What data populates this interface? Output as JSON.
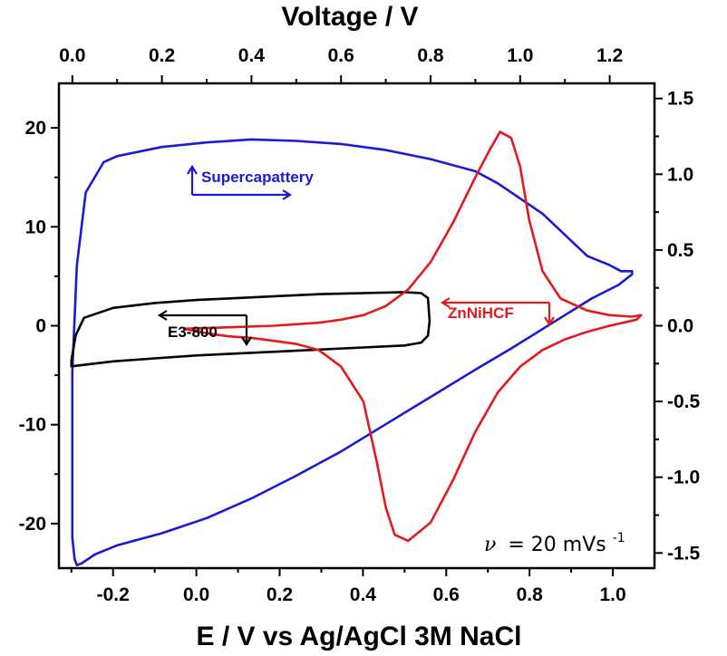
{
  "chart_data": {
    "type": "line",
    "title": "",
    "xlabel": "E / V vs Ag/AgCl 3M NaCl",
    "x2label": "Voltage / V",
    "ylabel": "",
    "y2label": "",
    "xlim": [
      -0.33,
      1.1
    ],
    "ylim": [
      -24.5,
      24.5
    ],
    "x2lim": [
      -0.03,
      1.3
    ],
    "y2lim": [
      -1.6,
      1.6
    ],
    "x_ticks": [
      "-0.2",
      "0.0",
      "0.2",
      "0.4",
      "0.6",
      "0.8",
      "1.0"
    ],
    "y_ticks": [
      "-20",
      "-10",
      "0",
      "10",
      "20"
    ],
    "x2_ticks": [
      "0.0",
      "0.2",
      "0.4",
      "0.6",
      "0.8",
      "1.0",
      "1.2"
    ],
    "y2_ticks": [
      "-1.5",
      "-1.0",
      "-0.5",
      "0.0",
      "0.5",
      "1.0",
      "1.5"
    ],
    "colors": {
      "supercapattery": "#1a1ad6",
      "e3_800": "#000000",
      "znnihcf": "#e3191c"
    },
    "series": [
      {
        "name": "Supercapattery",
        "color": "#1a1ad6",
        "axes": "top-right",
        "x": [
          1.25,
          1.22,
          1.16,
          1.1,
          1.04,
          0.98,
          0.9,
          0.8,
          0.7,
          0.6,
          0.5,
          0.4,
          0.3,
          0.2,
          0.1,
          0.05,
          0.02,
          0.01,
          0.005,
          0.0,
          0.0,
          0.01,
          0.03,
          0.07,
          0.1,
          0.2,
          0.3,
          0.4,
          0.5,
          0.6,
          0.7,
          0.8,
          0.9,
          0.95,
          1.0,
          1.05,
          1.1,
          1.15,
          1.2,
          1.225,
          1.24,
          1.25,
          1.25
        ],
        "y": [
          0.34,
          0.27,
          0.18,
          0.07,
          -0.04,
          -0.15,
          -0.29,
          -0.47,
          -0.65,
          -0.83,
          -0.99,
          -1.14,
          -1.27,
          -1.37,
          -1.45,
          -1.51,
          -1.57,
          -1.58,
          -1.54,
          -1.4,
          -0.3,
          0.4,
          0.88,
          1.08,
          1.12,
          1.18,
          1.21,
          1.23,
          1.22,
          1.2,
          1.16,
          1.1,
          1.02,
          0.94,
          0.84,
          0.74,
          0.6,
          0.46,
          0.4,
          0.36,
          0.36,
          0.36,
          0.34
        ]
      },
      {
        "name": "E3-800",
        "color": "#000000",
        "axes": "bottom-left",
        "x": [
          -0.3,
          -0.2,
          -0.1,
          0.0,
          0.1,
          0.2,
          0.3,
          0.4,
          0.5,
          0.54,
          0.556,
          0.56,
          0.556,
          0.54,
          0.5,
          0.4,
          0.3,
          0.2,
          0.1,
          0.0,
          -0.1,
          -0.2,
          -0.27,
          -0.29,
          -0.3,
          -0.3
        ],
        "y": [
          -4.1,
          -3.6,
          -3.3,
          -3.0,
          -2.8,
          -2.6,
          -2.4,
          -2.2,
          -2.0,
          -1.7,
          -1.0,
          0.5,
          2.8,
          3.3,
          3.4,
          3.3,
          3.2,
          3.0,
          2.8,
          2.6,
          2.3,
          1.8,
          0.8,
          -1.0,
          -3.5,
          -4.1
        ]
      },
      {
        "name": "ZnNiHCF",
        "color": "#e3191c",
        "axes": "top-right",
        "x": [
          0.25,
          0.35,
          0.45,
          0.55,
          0.6,
          0.65,
          0.7,
          0.75,
          0.8,
          0.85,
          0.9,
          0.93,
          0.955,
          0.98,
          1.0,
          1.02,
          1.05,
          1.09,
          1.15,
          1.2,
          1.25,
          1.27,
          1.26,
          1.2,
          1.15,
          1.1,
          1.05,
          1.0,
          0.95,
          0.9,
          0.85,
          0.8,
          0.75,
          0.72,
          0.7,
          0.68,
          0.65,
          0.6,
          0.55,
          0.5,
          0.45,
          0.4,
          0.35,
          0.3,
          0.25
        ],
        "y": [
          -0.02,
          -0.01,
          0.0,
          0.02,
          0.04,
          0.07,
          0.13,
          0.24,
          0.42,
          0.68,
          0.98,
          1.15,
          1.28,
          1.24,
          1.05,
          0.7,
          0.36,
          0.18,
          0.1,
          0.07,
          0.06,
          0.07,
          0.04,
          0.0,
          -0.04,
          -0.09,
          -0.16,
          -0.27,
          -0.44,
          -0.7,
          -1.02,
          -1.3,
          -1.42,
          -1.38,
          -1.2,
          -0.9,
          -0.5,
          -0.27,
          -0.16,
          -0.12,
          -0.1,
          -0.08,
          -0.07,
          -0.05,
          -0.02
        ]
      }
    ],
    "annotations": [
      {
        "text": "Supercapattery",
        "color": "#1a1ad6"
      },
      {
        "text": "E3-800",
        "color": "#000000"
      },
      {
        "text": "ZnNiHCF",
        "color": "#e3191c"
      }
    ],
    "scan_rate": {
      "symbol": "ν",
      "text": "= 20 mVs",
      "superscript": "-1"
    }
  }
}
